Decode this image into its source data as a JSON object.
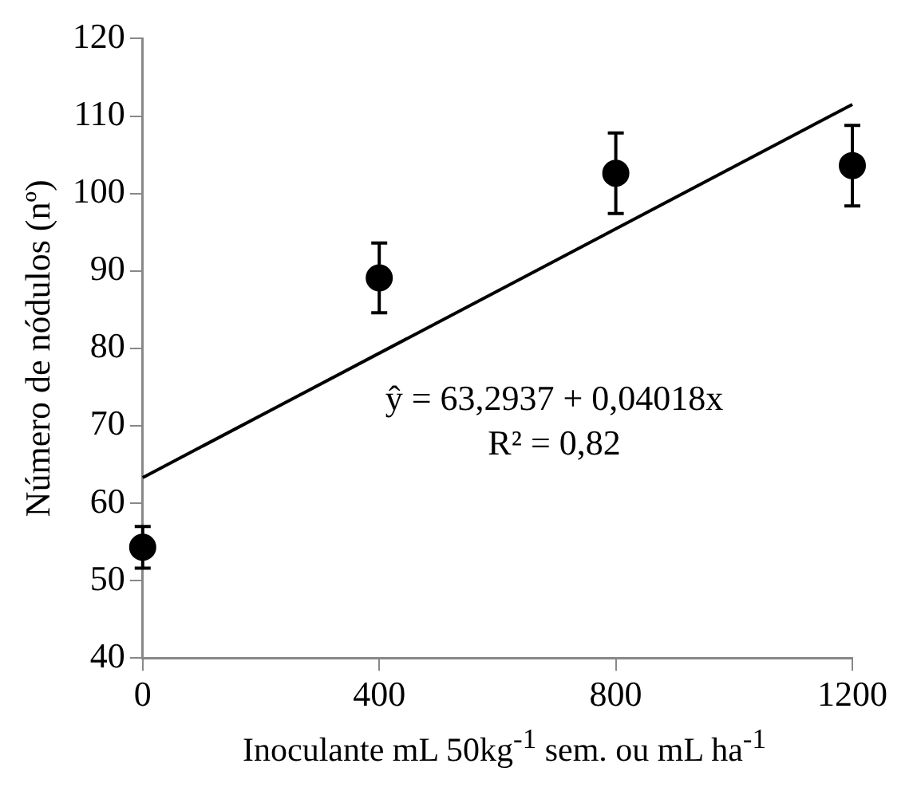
{
  "chart_data": {
    "type": "scatter",
    "xlabel": "Inoculante mL 50kg$^{-1}$ sem. ou mL ha$^{-1}$",
    "ylabel": "Número de nódulos (nº)",
    "x": [
      0,
      400,
      800,
      1200
    ],
    "series": [
      {
        "color": "#000000",
        "values": [
          54.3,
          89.1,
          102.6,
          103.6
        ],
        "errors": [
          2.7,
          4.5,
          5.2,
          5.2
        ]
      },
      {
        "type": "line",
        "color": "#000000",
        "x": [
          0,
          1200
        ],
        "values": [
          63.3,
          111.5
        ],
        "marker": "none"
      }
    ],
    "xlim": [
      0,
      1200
    ],
    "xticks": [
      0,
      400,
      800,
      1200
    ],
    "ylim": [
      40,
      120
    ],
    "yticks": [
      40,
      50,
      60,
      70,
      80,
      90,
      100,
      110,
      120
    ],
    "marker": "circle",
    "grid": false,
    "legend": false,
    "annotations": [
      "ŷ = 63,2937 + 0,04018x",
      "R² = 0,82"
    ]
  }
}
